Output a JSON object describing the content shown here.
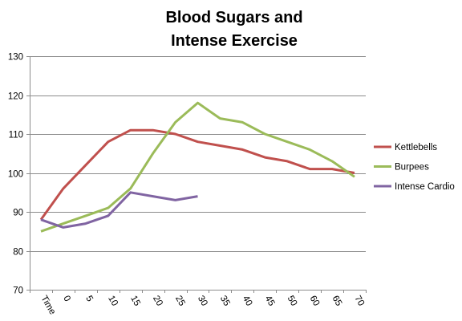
{
  "chart_data": {
    "type": "line",
    "title_lines": [
      "Blood Sugars and",
      "Intense Exercise"
    ],
    "xlabel": "",
    "ylabel": "",
    "categories": [
      "Time",
      "0",
      "5",
      "10",
      "15",
      "20",
      "25",
      "30",
      "35",
      "40",
      "45",
      "50",
      "60",
      "65",
      "70"
    ],
    "ylim": [
      70,
      130
    ],
    "yticks": [
      70,
      80,
      90,
      100,
      110,
      120,
      130
    ],
    "grid": true,
    "legend_position": "right",
    "series": [
      {
        "name": "Kettlebells",
        "color": "#c0504d",
        "values": [
          88,
          96,
          102,
          108,
          111,
          111,
          110,
          108,
          107,
          106,
          104,
          103,
          101,
          101,
          100
        ]
      },
      {
        "name": "Burpees",
        "color": "#9bbb59",
        "values": [
          85,
          87,
          89,
          91,
          96,
          105,
          113,
          118,
          114,
          113,
          110,
          108,
          106,
          103,
          99
        ]
      },
      {
        "name": "Intense Cardio",
        "color": "#8064a2",
        "values": [
          88,
          86,
          87,
          89,
          95,
          94,
          93,
          94,
          null,
          null,
          null,
          null,
          null,
          null,
          null
        ]
      }
    ]
  }
}
